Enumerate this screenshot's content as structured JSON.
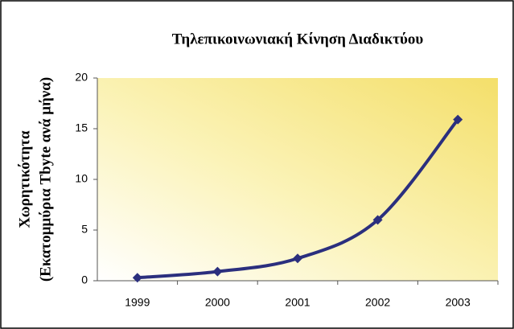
{
  "chart_data": {
    "type": "line",
    "title": "Τηλεπικοινωνιακή Κίνηση Διαδικτύου",
    "y_label": [
      "Χωρητικότητα",
      "(Εκατομμύρια Tbyte ανά μήνα)"
    ],
    "categories": [
      "1999",
      "2000",
      "2001",
      "2002",
      "2003"
    ],
    "series": [
      {
        "color": "#2b2f7e",
        "values": [
          0.3,
          0.9,
          2.2,
          6.0,
          15.9
        ]
      }
    ],
    "ylim": [
      0,
      20
    ],
    "yticks": [
      0,
      5,
      10,
      15,
      20
    ],
    "grid": false
  }
}
